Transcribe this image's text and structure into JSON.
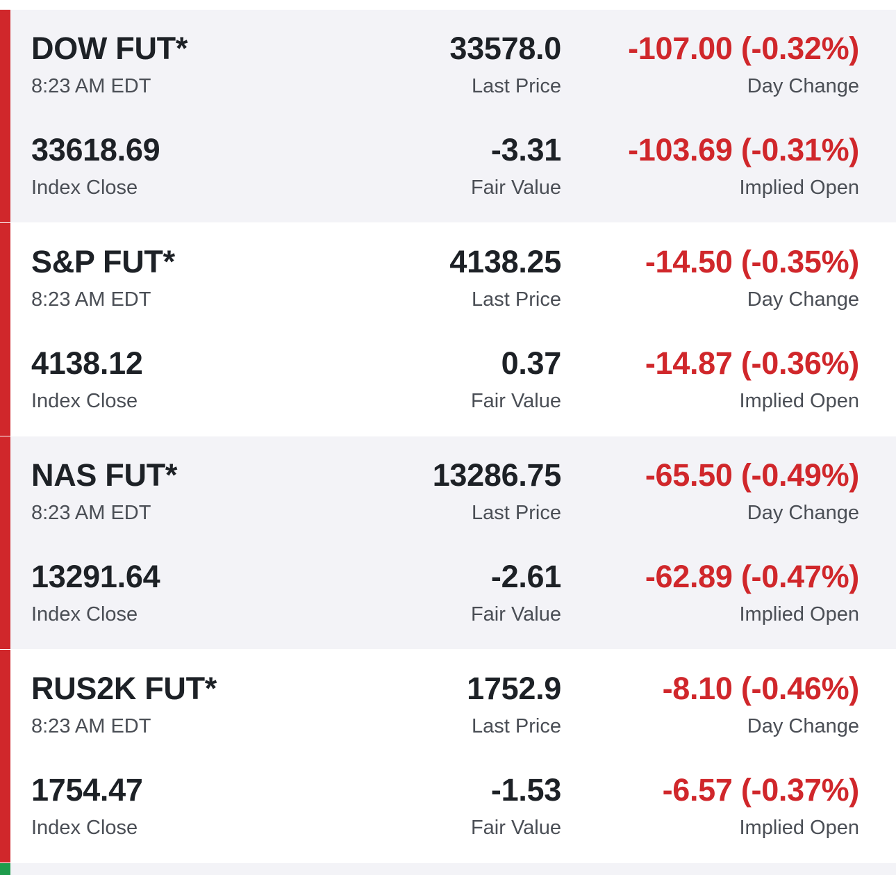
{
  "colors": {
    "negative": "#d0272b",
    "positive": "#1e9c4c",
    "row_shaded": "#f3f3f7",
    "row_plain": "#ffffff"
  },
  "futures": [
    {
      "name": "DOW FUT*",
      "time": "8:23 AM EDT",
      "last_price": "33578.0",
      "last_price_label": "Last Price",
      "day_change": "-107.00 (-0.32%)",
      "day_change_label": "Day Change",
      "index_close": "33618.69",
      "index_close_label": "Index Close",
      "fair_value": "-3.31",
      "fair_value_label": "Fair Value",
      "implied_open": "-103.69 (-0.31%)",
      "implied_open_label": "Implied Open"
    },
    {
      "name": "S&P FUT*",
      "time": "8:23 AM EDT",
      "last_price": "4138.25",
      "last_price_label": "Last Price",
      "day_change": "-14.50 (-0.35%)",
      "day_change_label": "Day Change",
      "index_close": "4138.12",
      "index_close_label": "Index Close",
      "fair_value": "0.37",
      "fair_value_label": "Fair Value",
      "implied_open": "-14.87 (-0.36%)",
      "implied_open_label": "Implied Open"
    },
    {
      "name": "NAS FUT*",
      "time": "8:23 AM EDT",
      "last_price": "13286.75",
      "last_price_label": "Last Price",
      "day_change": "-65.50 (-0.49%)",
      "day_change_label": "Day Change",
      "index_close": "13291.64",
      "index_close_label": "Index Close",
      "fair_value": "-2.61",
      "fair_value_label": "Fair Value",
      "implied_open": "-62.89 (-0.47%)",
      "implied_open_label": "Implied Open"
    },
    {
      "name": "RUS2K FUT*",
      "time": "8:23 AM EDT",
      "last_price": "1752.9",
      "last_price_label": "Last Price",
      "day_change": "-8.10 (-0.46%)",
      "day_change_label": "Day Change",
      "index_close": "1754.47",
      "index_close_label": "Index Close",
      "fair_value": "-1.53",
      "fair_value_label": "Fair Value",
      "implied_open": "-6.57 (-0.37%)",
      "implied_open_label": "Implied Open"
    }
  ]
}
